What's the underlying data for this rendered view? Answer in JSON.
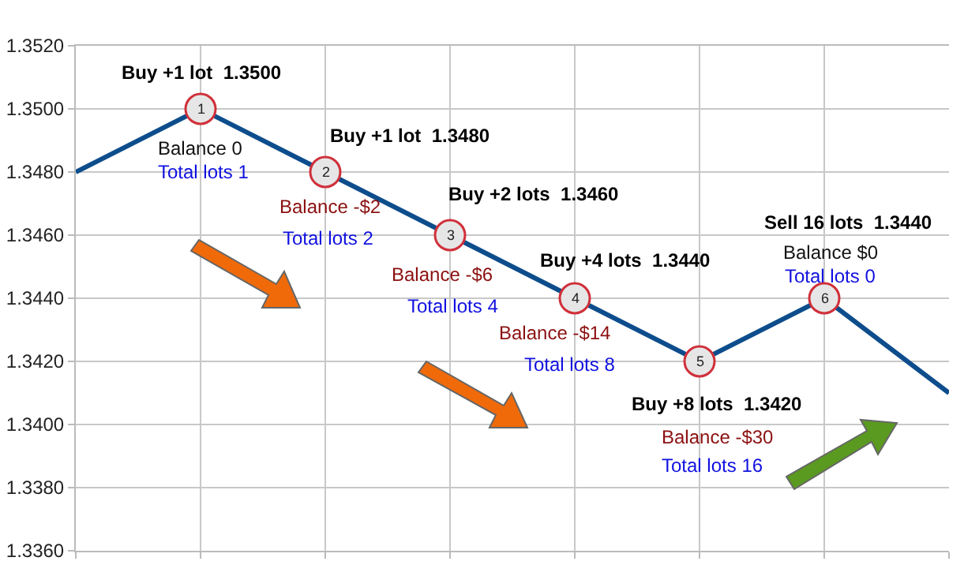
{
  "chart_data": {
    "type": "line",
    "categories": [
      null,
      null,
      null,
      null,
      null,
      null,
      null,
      null
    ],
    "ylim": [
      1.336,
      1.352
    ],
    "yticks": [
      {
        "value": 1.336,
        "label": "1.3360"
      },
      {
        "value": 1.338,
        "label": "1.3380"
      },
      {
        "value": 1.34,
        "label": "1.3400"
      },
      {
        "value": 1.342,
        "label": "1.3420"
      },
      {
        "value": 1.344,
        "label": "1.3440"
      },
      {
        "value": 1.346,
        "label": "1.3460"
      },
      {
        "value": 1.348,
        "label": "1.3480"
      },
      {
        "value": 1.35,
        "label": "1.3500"
      },
      {
        "value": 1.352,
        "label": "1.3520"
      }
    ],
    "grid": true,
    "legend": false,
    "series": [
      {
        "color": "#0d4d8c",
        "marker": "none",
        "line_style": "solid",
        "values": [
          1.348,
          1.35,
          1.348,
          1.346,
          1.344,
          1.342,
          1.344,
          1.341
        ]
      },
      {
        "type": "scatter",
        "color": "#e6e6e6",
        "marker": "circle",
        "values": [
          null,
          1.35,
          1.348,
          1.346,
          1.344,
          1.342,
          1.344,
          null
        ]
      }
    ],
    "annotations": [
      "1",
      "Buy +1 lot  1.3500",
      "Balance 0",
      "Total lots 1",
      "2",
      "Buy +1 lot  1.3480",
      "Balance -$2",
      "Total lots 2",
      "3",
      "Buy +2 lots  1.3460",
      "Balance -$6",
      "Total lots 4",
      "4",
      "Buy +4 lots  1.3440",
      "Balance -$14",
      "Total lots 8",
      "5",
      "Buy +8 lots  1.3420",
      "Balance -$30",
      "Total lots 16",
      "6",
      "Sell 16 lots  1.3440",
      "Balance $0",
      "Total lots 0"
    ]
  }
}
